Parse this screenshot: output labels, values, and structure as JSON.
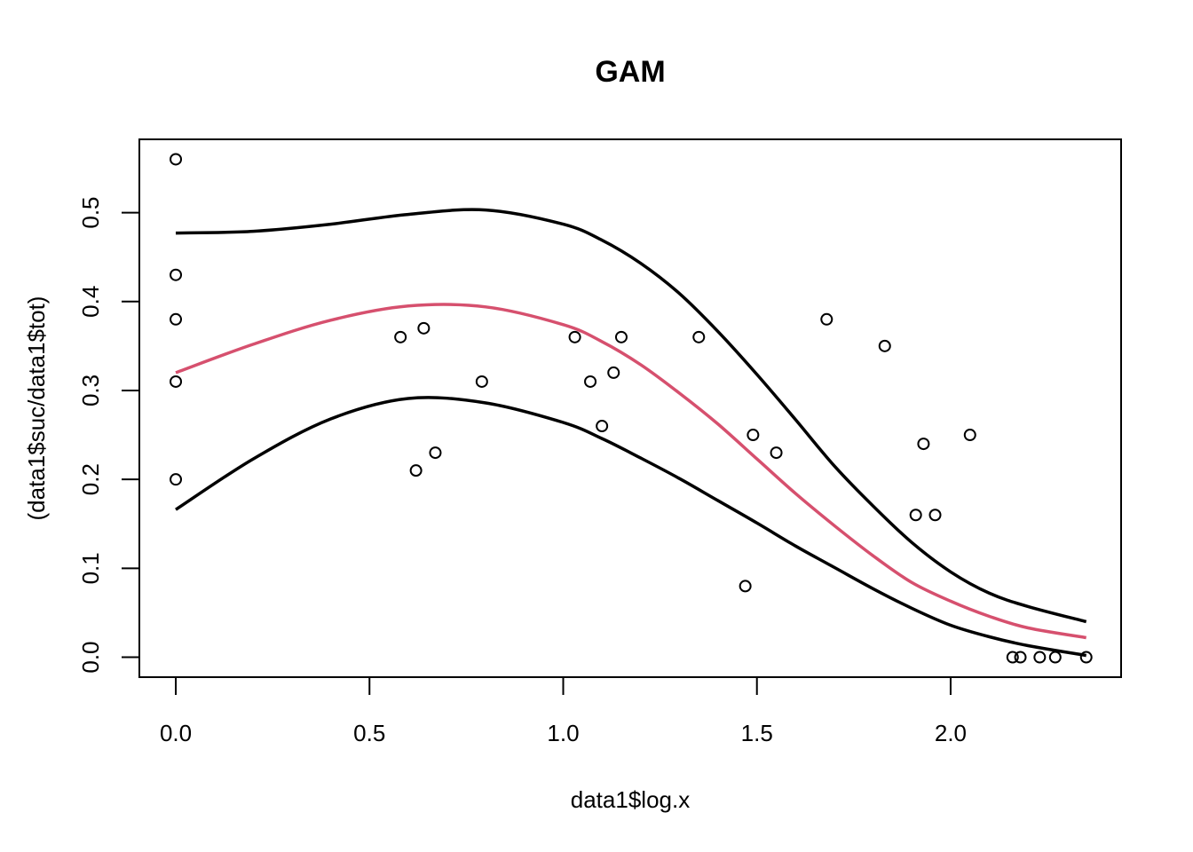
{
  "chart_data": {
    "type": "scatter",
    "title": "GAM",
    "xlabel": "data1$log.x",
    "ylabel": "(data1$suc/data1$tot)",
    "xlim": [
      -0.094,
      2.44
    ],
    "ylim": [
      -0.0224,
      0.5824
    ],
    "x_ticks": [
      {
        "value": 0.0,
        "label": "0.0"
      },
      {
        "value": 0.5,
        "label": "0.5"
      },
      {
        "value": 1.0,
        "label": "1.0"
      },
      {
        "value": 1.5,
        "label": "1.5"
      },
      {
        "value": 2.0,
        "label": "2.0"
      }
    ],
    "y_ticks": [
      {
        "value": 0.0,
        "label": "0.0"
      },
      {
        "value": 0.1,
        "label": "0.1"
      },
      {
        "value": 0.2,
        "label": "0.2"
      },
      {
        "value": 0.3,
        "label": "0.3"
      },
      {
        "value": 0.4,
        "label": "0.4"
      },
      {
        "value": 0.5,
        "label": "0.5"
      }
    ],
    "grid": false,
    "points": [
      [
        0.0,
        0.56
      ],
      [
        0.0,
        0.43
      ],
      [
        0.0,
        0.38
      ],
      [
        0.0,
        0.31
      ],
      [
        0.0,
        0.2
      ],
      [
        0.58,
        0.36
      ],
      [
        0.62,
        0.21
      ],
      [
        0.64,
        0.37
      ],
      [
        0.67,
        0.23
      ],
      [
        0.79,
        0.31
      ],
      [
        1.03,
        0.36
      ],
      [
        1.07,
        0.31
      ],
      [
        1.1,
        0.26
      ],
      [
        1.13,
        0.32
      ],
      [
        1.15,
        0.36
      ],
      [
        1.35,
        0.36
      ],
      [
        1.47,
        0.08
      ],
      [
        1.49,
        0.25
      ],
      [
        1.55,
        0.23
      ],
      [
        1.68,
        0.38
      ],
      [
        1.83,
        0.35
      ],
      [
        1.91,
        0.16
      ],
      [
        1.93,
        0.24
      ],
      [
        1.96,
        0.16
      ],
      [
        2.05,
        0.25
      ],
      [
        2.16,
        0.0
      ],
      [
        2.18,
        0.0
      ],
      [
        2.23,
        0.0
      ],
      [
        2.27,
        0.0
      ],
      [
        2.35,
        0.0
      ]
    ],
    "series": [
      {
        "color": "#000000",
        "x": [
          0.0,
          0.2,
          0.4,
          0.6,
          0.8,
          1.0,
          1.1,
          1.2,
          1.3,
          1.4,
          1.5,
          1.6,
          1.7,
          1.8,
          1.9,
          2.0,
          2.1,
          2.2,
          2.35
        ],
        "y": [
          0.477,
          0.479,
          0.487,
          0.498,
          0.503,
          0.487,
          0.469,
          0.443,
          0.409,
          0.366,
          0.318,
          0.267,
          0.215,
          0.17,
          0.129,
          0.096,
          0.072,
          0.057,
          0.04
        ]
      },
      {
        "color": "#d6506e",
        "x": [
          0.0,
          0.2,
          0.4,
          0.6,
          0.8,
          1.0,
          1.1,
          1.2,
          1.3,
          1.4,
          1.5,
          1.6,
          1.7,
          1.8,
          1.9,
          2.0,
          2.1,
          2.2,
          2.35
        ],
        "y": [
          0.32,
          0.352,
          0.379,
          0.395,
          0.394,
          0.374,
          0.355,
          0.329,
          0.297,
          0.262,
          0.223,
          0.184,
          0.148,
          0.114,
          0.084,
          0.063,
          0.046,
          0.033,
          0.022
        ]
      },
      {
        "color": "#000000",
        "x": [
          0.0,
          0.2,
          0.4,
          0.6,
          0.8,
          1.0,
          1.1,
          1.2,
          1.3,
          1.4,
          1.5,
          1.6,
          1.7,
          1.8,
          1.9,
          2.0,
          2.1,
          2.2,
          2.35
        ],
        "y": [
          0.166,
          0.223,
          0.268,
          0.291,
          0.286,
          0.264,
          0.246,
          0.224,
          0.201,
          0.176,
          0.151,
          0.125,
          0.101,
          0.077,
          0.055,
          0.036,
          0.023,
          0.013,
          0.002
        ]
      }
    ],
    "colors": {
      "fit": "#d6506e",
      "bands": "#000000",
      "points": "#000000"
    }
  }
}
